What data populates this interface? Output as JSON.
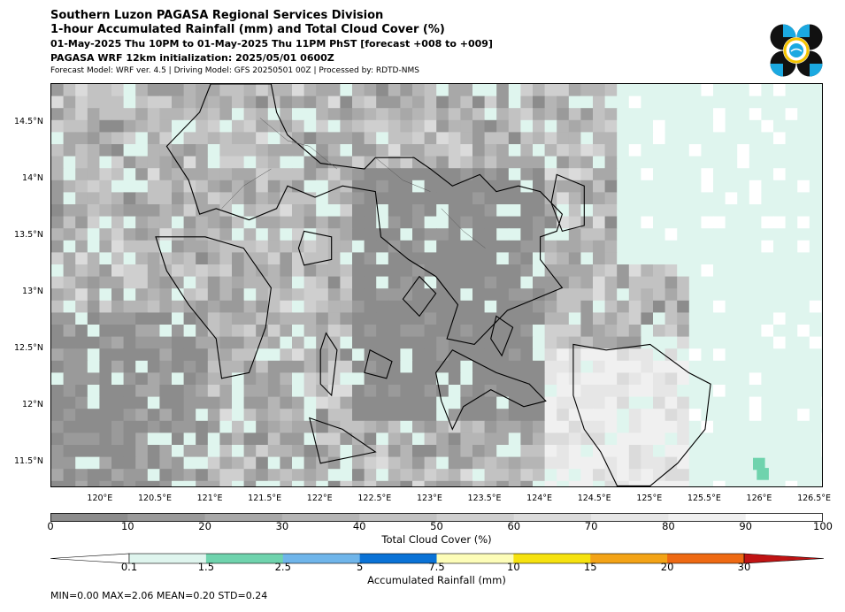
{
  "header": {
    "line1": "Southern Luzon PAGASA Regional Services Division",
    "line2": "1-hour Accumulated Rainfall (mm) and Total Cloud Cover (%)",
    "line3": "01-May-2025 Thu 10PM to 01-May-2025 Thu 11PM PhST [forecast +008 to +009]",
    "line4": "PAGASA WRF 12km initialization: 2025/05/01 0600Z",
    "line5": "Forecast Model: WRF ver. 4.5 | Driving Model: GFS 20250501 00Z | Processed by: RDTD-NMS"
  },
  "logo": {
    "icon": "pagasa-logo",
    "colors": [
      "#111111",
      "#1ba9e1",
      "#f5c400"
    ]
  },
  "map": {
    "lat_labels": [
      "14.5°N",
      "14°N",
      "13.5°N",
      "13°N",
      "12.5°N",
      "12°N",
      "11.5°N"
    ],
    "lon_labels": [
      "120°E",
      "120.5°E",
      "121°E",
      "121.5°E",
      "122°E",
      "122.5°E",
      "123°E",
      "123.5°E",
      "124°E",
      "124.5°E",
      "125°E",
      "125.5°E",
      "126°E",
      "126.5°E"
    ],
    "lat_values": [
      14.5,
      14.0,
      13.5,
      13.0,
      12.5,
      12.0,
      11.5
    ],
    "lon_values": [
      120.0,
      120.5,
      121.0,
      121.5,
      122.0,
      122.5,
      123.0,
      123.5,
      124.0,
      124.5,
      125.0,
      125.5,
      126.0,
      126.5
    ],
    "lon_range": [
      119.55,
      126.58
    ],
    "lat_range": [
      11.28,
      14.85
    ]
  },
  "cloud_colorbar": {
    "label": "Total Cloud Cover (%)",
    "ticks": [
      "0",
      "10",
      "20",
      "30",
      "40",
      "50",
      "60",
      "70",
      "80",
      "90",
      "100"
    ],
    "colors": [
      "#8c8c8c",
      "#9a9a9a",
      "#a8a8a8",
      "#b5b5b5",
      "#c2c2c2",
      "#cfcfcf",
      "#dbdbdb",
      "#e6e6e6",
      "#f0f0f0",
      "#ffffff"
    ]
  },
  "rain_colorbar": {
    "label": "Accumulated Rainfall (mm)",
    "ticks": [
      "0.1",
      "1.5",
      "2.5",
      "5",
      "7.5",
      "10",
      "15",
      "20",
      "30"
    ],
    "colors": [
      "#dff5ee",
      "#6fd3ad",
      "#6fb5ea",
      "#0a72d6",
      "#fdfdb8",
      "#f6e20f",
      "#f3a316",
      "#ee6913",
      "#c01313"
    ],
    "under_color": "#ffffff"
  },
  "stats": "MIN=0.00   MAX=2.06   MEAN=0.20   STD=0.24"
}
